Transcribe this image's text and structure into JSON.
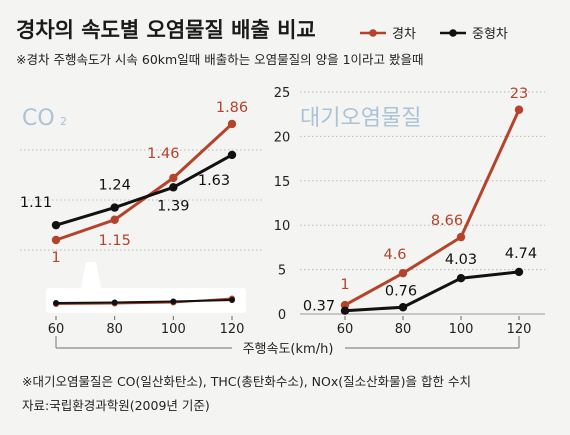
{
  "title": "경차의 속도별 오염물질 배출 비교",
  "subtitle": "※경차 주행속도가  시속 60km일때 배출하는 오염물질의 양을  1이라고 봤을때",
  "legend": [
    {
      "label": "경차",
      "color": "#b5432b"
    },
    {
      "label": "중형차",
      "color": "#111111"
    }
  ],
  "colors": {
    "light": "#b5432b",
    "mid": "#111111",
    "grid": "#b9b9b9",
    "panel_label": "#aac3d6",
    "highlight_box": "#ffffff"
  },
  "xlabel": "주행속도(km/h)",
  "footnote1": "※대기오염물질은 CO(일산화탄소), THC(총탄화수소), NOx(질소산화물)을 합한 수치",
  "footnote2": "자료:국립환경과학원(2009년 기준)",
  "chart_data": [
    {
      "type": "line",
      "title": "CO",
      "title_subscript": "2",
      "x": [
        60,
        80,
        100,
        120
      ],
      "categories": [
        "60",
        "80",
        "100",
        "120"
      ],
      "series": [
        {
          "name": "경차",
          "values": [
            1,
            1.15,
            1.46,
            1.86
          ],
          "labels": [
            "1",
            "1.15",
            "1.46",
            "1.86"
          ]
        },
        {
          "name": "중형차",
          "values": [
            1.11,
            1.24,
            1.39,
            1.63
          ],
          "labels": [
            "1.11",
            "1.24",
            "1.39",
            "1.63"
          ]
        }
      ],
      "inset_note": "magnified view of the lines drawn at the bottom of the panel"
    },
    {
      "type": "line",
      "title": "대기오염물질",
      "x": [
        60,
        80,
        100,
        120
      ],
      "categories": [
        "60",
        "80",
        "100",
        "120"
      ],
      "ylim": [
        0,
        25
      ],
      "yticks": [
        "0",
        "5",
        "10",
        "15",
        "20",
        "25"
      ],
      "grid": true,
      "series": [
        {
          "name": "경차",
          "values": [
            1,
            4.6,
            8.66,
            23
          ],
          "labels": [
            "1",
            "4.6",
            "8.66",
            "23"
          ]
        },
        {
          "name": "중형차",
          "values": [
            0.37,
            0.76,
            4.03,
            4.74
          ],
          "labels": [
            "0.37",
            "0.76",
            "4.03",
            "4.74"
          ]
        }
      ]
    }
  ]
}
